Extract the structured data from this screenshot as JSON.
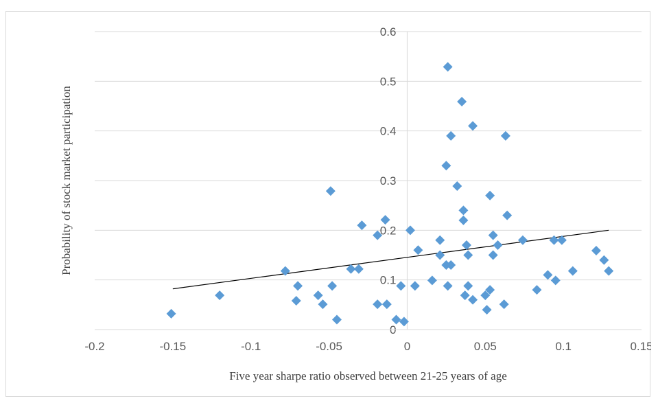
{
  "chart_data": {
    "type": "scatter",
    "title": "",
    "xlabel": "Five year sharpe ratio observed between 21-25 years of age",
    "ylabel": "Probability  of  stock market  participation",
    "xlim": [
      -0.2,
      0.15
    ],
    "ylim": [
      0,
      0.6
    ],
    "x_ticks": [
      "-0.2",
      "-0.15",
      "-0.1",
      "-0.05",
      "0",
      "0.05",
      "0.1",
      "0.15"
    ],
    "y_ticks": [
      "0",
      "0.1",
      "0.2",
      "0.3",
      "0.4",
      "0.5",
      "0.6"
    ],
    "y_tick_values": [
      0,
      0.1,
      0.2,
      0.3,
      0.4,
      0.5,
      0.6
    ],
    "x_tick_values": [
      -0.2,
      -0.15,
      -0.1,
      -0.05,
      0,
      0.05,
      0.1,
      0.15
    ],
    "grid": {
      "horizontal": true,
      "vertical": false
    },
    "legend": "none",
    "marker_color": "#5b9bd5",
    "trendline_color": "#000000",
    "trendline": {
      "x": [
        -0.15,
        0.129
      ],
      "y": [
        0.082,
        0.2
      ]
    },
    "series": [
      {
        "points": [
          [
            -0.151,
            0.032
          ],
          [
            -0.12,
            0.069
          ],
          [
            -0.078,
            0.118
          ],
          [
            -0.071,
            0.058
          ],
          [
            -0.07,
            0.088
          ],
          [
            -0.057,
            0.069
          ],
          [
            -0.054,
            0.051
          ],
          [
            -0.049,
            0.279
          ],
          [
            -0.048,
            0.088
          ],
          [
            -0.045,
            0.02
          ],
          [
            -0.036,
            0.122
          ],
          [
            -0.031,
            0.122
          ],
          [
            -0.029,
            0.21
          ],
          [
            -0.019,
            0.051
          ],
          [
            -0.019,
            0.19
          ],
          [
            -0.014,
            0.221
          ],
          [
            -0.013,
            0.051
          ],
          [
            -0.007,
            0.02
          ],
          [
            -0.004,
            0.088
          ],
          [
            -0.002,
            0.016
          ],
          [
            0.002,
            0.2
          ],
          [
            0.005,
            0.088
          ],
          [
            0.007,
            0.16
          ],
          [
            0.016,
            0.099
          ],
          [
            0.021,
            0.18
          ],
          [
            0.021,
            0.15
          ],
          [
            0.025,
            0.13
          ],
          [
            0.025,
            0.33
          ],
          [
            0.026,
            0.529
          ],
          [
            0.026,
            0.088
          ],
          [
            0.028,
            0.39
          ],
          [
            0.028,
            0.13
          ],
          [
            0.032,
            0.289
          ],
          [
            0.035,
            0.459
          ],
          [
            0.036,
            0.24
          ],
          [
            0.036,
            0.22
          ],
          [
            0.037,
            0.069
          ],
          [
            0.038,
            0.17
          ],
          [
            0.039,
            0.088
          ],
          [
            0.039,
            0.15
          ],
          [
            0.042,
            0.41
          ],
          [
            0.042,
            0.06
          ],
          [
            0.05,
            0.069
          ],
          [
            0.051,
            0.04
          ],
          [
            0.053,
            0.27
          ],
          [
            0.053,
            0.08
          ],
          [
            0.055,
            0.19
          ],
          [
            0.055,
            0.15
          ],
          [
            0.058,
            0.17
          ],
          [
            0.062,
            0.051
          ],
          [
            0.063,
            0.39
          ],
          [
            0.064,
            0.23
          ],
          [
            0.074,
            0.18
          ],
          [
            0.083,
            0.08
          ],
          [
            0.09,
            0.11
          ],
          [
            0.094,
            0.18
          ],
          [
            0.095,
            0.099
          ],
          [
            0.099,
            0.18
          ],
          [
            0.106,
            0.118
          ],
          [
            0.121,
            0.159
          ],
          [
            0.126,
            0.14
          ],
          [
            0.129,
            0.118
          ]
        ]
      }
    ]
  }
}
